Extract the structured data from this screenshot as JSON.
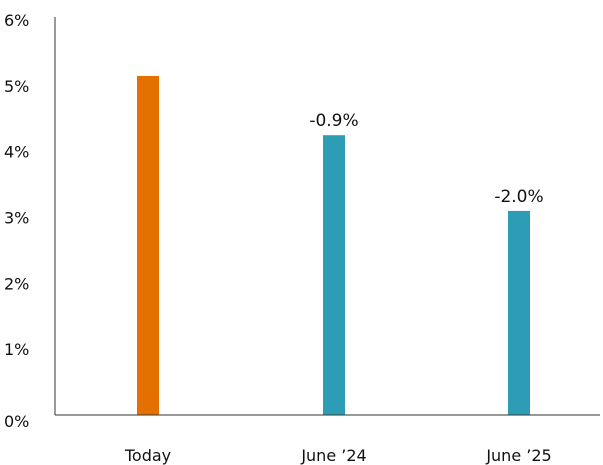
{
  "chart_data": {
    "type": "bar",
    "categories": [
      "Today",
      "June ’24",
      "June ’25"
    ],
    "values": [
      5.15,
      4.25,
      3.1
    ],
    "data_labels": [
      "",
      "-0.9%",
      "-2.0%"
    ],
    "bar_colors": [
      "#E37000",
      "#2D9CB5",
      "#2D9CB5"
    ],
    "y_ticks": [
      "0%",
      "1%",
      "2%",
      "3%",
      "4%",
      "5%",
      "6%"
    ],
    "ylim": [
      0,
      6
    ],
    "grid": false,
    "title": "",
    "xlabel": "",
    "ylabel": ""
  }
}
